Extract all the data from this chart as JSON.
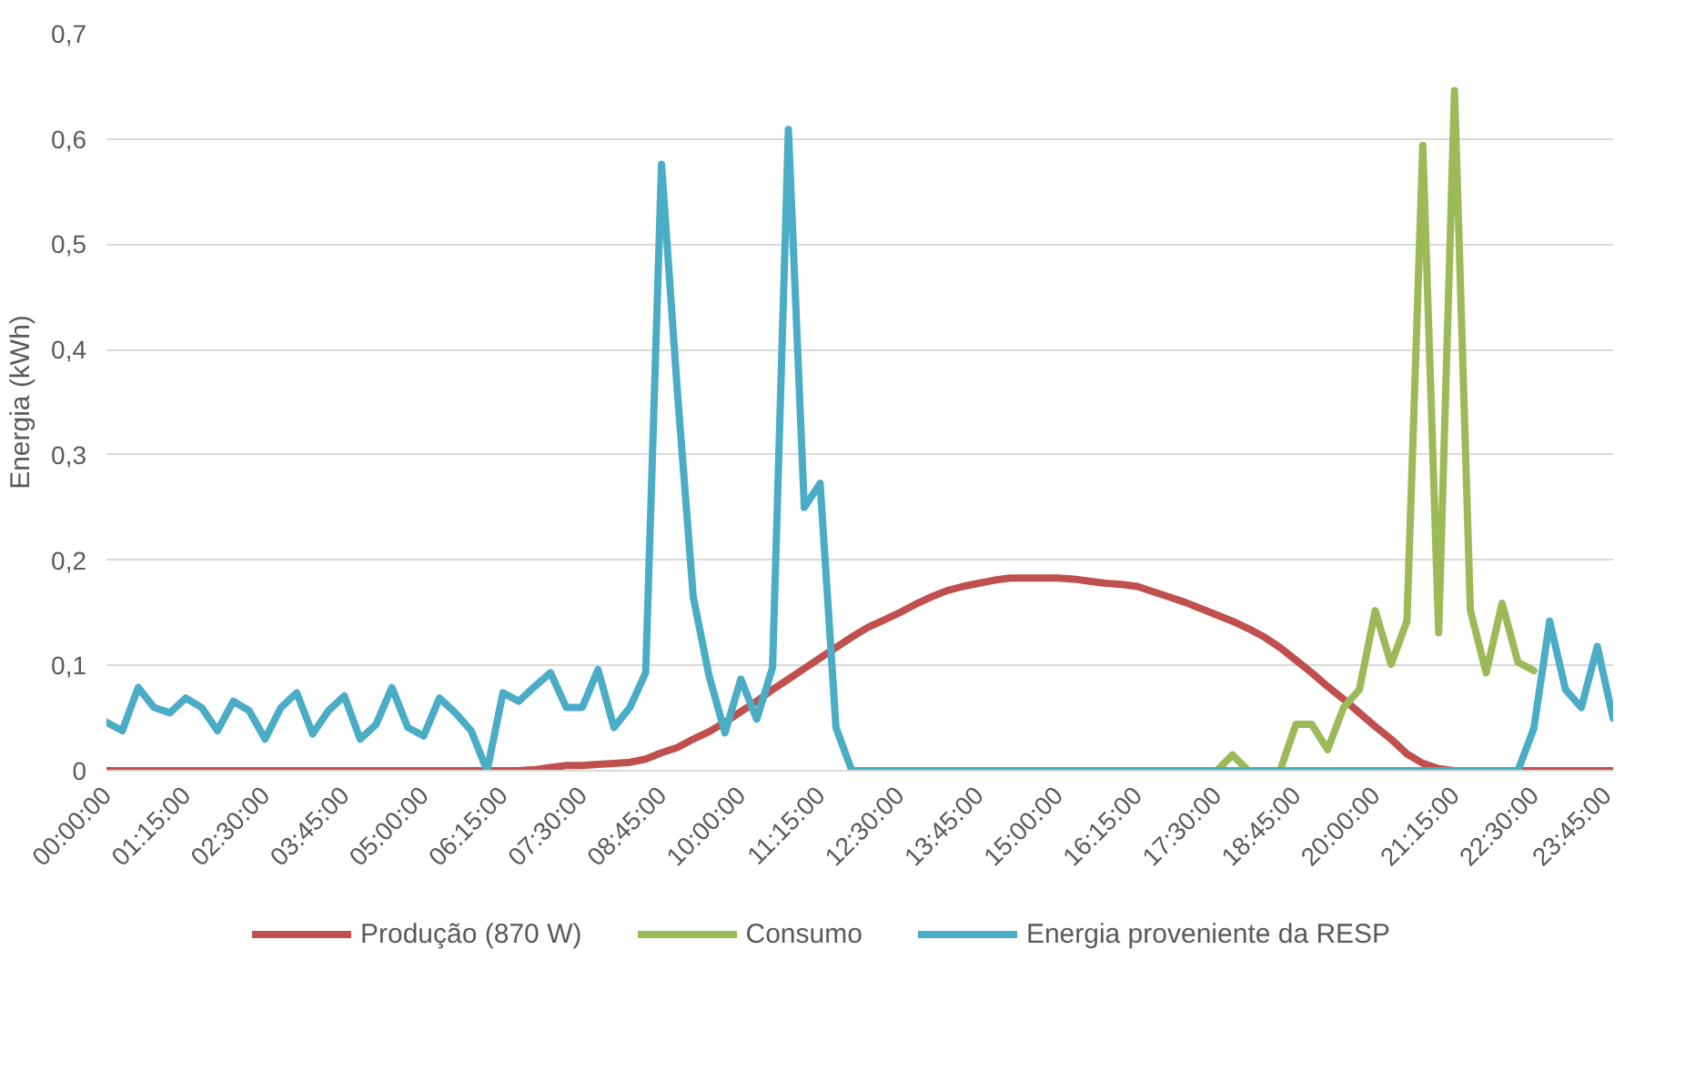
{
  "chart_data": {
    "type": "line",
    "ylabel": "Energia (kWh)",
    "categories": [
      "00:00:00",
      null,
      null,
      null,
      null,
      "01:15:00",
      null,
      null,
      null,
      null,
      "02:30:00",
      null,
      null,
      null,
      null,
      "03:45:00",
      null,
      null,
      null,
      null,
      "05:00:00",
      null,
      null,
      null,
      null,
      "06:15:00",
      null,
      null,
      null,
      null,
      "07:30:00",
      null,
      null,
      null,
      null,
      "08:45:00",
      null,
      null,
      null,
      null,
      "10:00:00",
      null,
      null,
      null,
      null,
      "11:15:00",
      null,
      null,
      null,
      null,
      "12:30:00",
      null,
      null,
      null,
      null,
      "13:45:00",
      null,
      null,
      null,
      null,
      "15:00:00",
      null,
      null,
      null,
      null,
      "16:15:00",
      null,
      null,
      null,
      null,
      "17:30:00",
      null,
      null,
      null,
      null,
      "18:45:00",
      null,
      null,
      null,
      null,
      "20:00:00",
      null,
      null,
      null,
      null,
      "21:15:00",
      null,
      null,
      null,
      null,
      "22:30:00",
      null,
      null,
      null,
      null,
      "23:45:00"
    ],
    "series": [
      {
        "name": "Produção (870 W)",
        "color": "#c0504d",
        "values": [
          0,
          0,
          0,
          0,
          0,
          0,
          0,
          0,
          0,
          0,
          0,
          0,
          0,
          0,
          0,
          0,
          0,
          0,
          0,
          0,
          0,
          0,
          0,
          0,
          0,
          0,
          0,
          0.001,
          0.003,
          0.005,
          0.005,
          0.006,
          0.007,
          0.008,
          0.011,
          0.017,
          0.022,
          0.03,
          0.037,
          0.046,
          0.056,
          0.066,
          0.077,
          0.087,
          0.097,
          0.107,
          0.117,
          0.127,
          0.136,
          0.143,
          0.15,
          0.158,
          0.165,
          0.171,
          0.175,
          0.178,
          0.181,
          0.183,
          0.183,
          0.183,
          0.183,
          0.182,
          0.18,
          0.178,
          0.177,
          0.175,
          0.17,
          0.165,
          0.16,
          0.154,
          0.148,
          0.142,
          0.135,
          0.127,
          0.117,
          0.105,
          0.093,
          0.08,
          0.068,
          0.055,
          0.042,
          0.03,
          0.016,
          0.007,
          0.002,
          0,
          0,
          0,
          0,
          0,
          0,
          0,
          0,
          0,
          0,
          0
        ]
      },
      {
        "name": "Consumo",
        "color": "#9bbb59",
        "values": [
          null,
          null,
          null,
          null,
          null,
          null,
          null,
          null,
          null,
          null,
          null,
          null,
          null,
          null,
          null,
          null,
          null,
          null,
          null,
          null,
          null,
          null,
          null,
          null,
          null,
          null,
          null,
          null,
          null,
          null,
          null,
          null,
          null,
          null,
          null,
          null,
          null,
          null,
          null,
          null,
          null,
          null,
          null,
          null,
          null,
          null,
          null,
          null,
          null,
          null,
          null,
          null,
          null,
          null,
          null,
          null,
          null,
          null,
          null,
          null,
          null,
          null,
          null,
          null,
          null,
          null,
          null,
          null,
          null,
          null,
          0,
          0.015,
          0,
          0,
          0,
          0.044,
          0.044,
          0.02,
          0.06,
          0.077,
          0.152,
          0.101,
          0.142,
          0.594,
          0.131,
          0.646,
          0.152,
          0.093,
          0.159,
          0.103,
          0.095,
          null,
          null,
          null,
          null,
          null
        ]
      },
      {
        "name": "Energia proveniente da RESP",
        "color": "#4bacc6",
        "values": [
          0.046,
          0.038,
          0.079,
          0.06,
          0.055,
          0.069,
          0.06,
          0.038,
          0.066,
          0.057,
          0.03,
          0.06,
          0.074,
          0.035,
          0.057,
          0.071,
          0.03,
          0.044,
          0.079,
          0.041,
          0.033,
          0.069,
          0.055,
          0.038,
          0,
          0.074,
          0.066,
          0.08,
          0.093,
          0.06,
          0.06,
          0.096,
          0.041,
          0.06,
          0.093,
          0.576,
          0.36,
          0.165,
          0.09,
          0.036,
          0.087,
          0.049,
          0.098,
          0.609,
          0.25,
          0.273,
          0.041,
          0,
          0,
          0,
          0,
          0,
          0,
          0,
          0,
          0,
          0,
          0,
          0,
          0,
          0,
          0,
          0,
          0,
          0,
          0,
          0,
          0,
          0,
          0,
          0,
          0,
          0,
          0,
          0,
          0,
          0,
          0,
          0,
          0,
          0,
          0,
          0,
          0,
          0,
          0,
          0,
          0,
          0,
          0,
          0.04,
          0.142,
          0.077,
          0.06,
          0.118,
          0.05
        ]
      }
    ],
    "ylim": [
      0,
      0.7
    ],
    "yticks": [
      0,
      {
        "value": 0.1,
        "label": "0,1"
      },
      {
        "value": 0.2,
        "label": "0,2"
      },
      {
        "value": 0.3,
        "label": "0,3"
      },
      {
        "value": 0.4,
        "label": "0,4"
      },
      {
        "value": 0.5,
        "label": "0,5"
      },
      {
        "value": 0.6,
        "label": "0,6"
      },
      {
        "value": 0.7,
        "label": "0,7"
      }
    ],
    "grid": "y",
    "legend": "bottom",
    "line_style": "solid"
  }
}
